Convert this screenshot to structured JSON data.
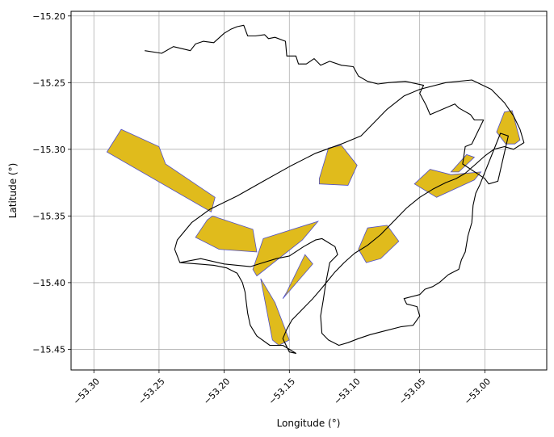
{
  "figure": {
    "xlabel": "Longitude (°)",
    "ylabel": "Latitude (°)",
    "x_ticks": [
      "−53.30",
      "−53.25",
      "−53.20",
      "−53.15",
      "−53.10",
      "−53.05",
      "−53.00"
    ],
    "y_ticks": [
      "−15.20",
      "−15.25",
      "−15.30",
      "−15.35",
      "−15.40",
      "−15.45"
    ]
  },
  "chart_data": {
    "type": "map",
    "xlim": [
      -53.3175,
      -52.9525
    ],
    "ylim": [
      -15.4655,
      -15.1965
    ],
    "x_tick_values": [
      -53.3,
      -53.25,
      -53.2,
      -53.15,
      -53.1,
      -53.05,
      -53.0
    ],
    "y_tick_values": [
      -15.2,
      -15.25,
      -15.3,
      -15.35,
      -15.4,
      -15.45
    ],
    "grid": true,
    "colors": {
      "fill": "#e0bb1c",
      "fill_edge": "#5050c8",
      "outline": "#000000",
      "grid": "#b0b0b0"
    },
    "boundary": [
      [
        -53.261,
        -15.226
      ],
      [
        -53.248,
        -15.228
      ],
      [
        -53.239,
        -15.223
      ],
      [
        -53.226,
        -15.226
      ],
      [
        -53.222,
        -15.221
      ],
      [
        -53.216,
        -15.219
      ],
      [
        -53.208,
        -15.22
      ],
      [
        -53.2,
        -15.213
      ],
      [
        -53.195,
        -15.21
      ],
      [
        -53.19,
        -15.208
      ],
      [
        -53.185,
        -15.207
      ],
      [
        -53.182,
        -15.215
      ],
      [
        -53.176,
        -15.215
      ],
      [
        -53.169,
        -15.214
      ],
      [
        -53.166,
        -15.217
      ],
      [
        -53.161,
        -15.216
      ],
      [
        -53.153,
        -15.219
      ],
      [
        -53.152,
        -15.23
      ],
      [
        -53.145,
        -15.23
      ],
      [
        -53.143,
        -15.236
      ],
      [
        -53.137,
        -15.236
      ],
      [
        -53.131,
        -15.232
      ],
      [
        -53.126,
        -15.237
      ],
      [
        -53.119,
        -15.234
      ],
      [
        -53.11,
        -15.237
      ],
      [
        -53.101,
        -15.238
      ],
      [
        -53.097,
        -15.245
      ],
      [
        -53.09,
        -15.249
      ],
      [
        -53.082,
        -15.251
      ],
      [
        -53.074,
        -15.25
      ],
      [
        -53.061,
        -15.249
      ],
      [
        -53.047,
        -15.252
      ],
      [
        -53.05,
        -15.258
      ],
      [
        -53.045,
        -15.267
      ],
      [
        -53.042,
        -15.274
      ],
      [
        -53.035,
        -15.271
      ],
      [
        -53.023,
        -15.266
      ],
      [
        -53.02,
        -15.269
      ],
      [
        -53.011,
        -15.274
      ],
      [
        -53.008,
        -15.278
      ],
      [
        -53.001,
        -15.278
      ],
      [
        -53.01,
        -15.296
      ],
      [
        -53.015,
        -15.298
      ],
      [
        -53.017,
        -15.311
      ],
      [
        -53.0,
        -15.322
      ],
      [
        -52.997,
        -15.326
      ],
      [
        -52.99,
        -15.324
      ],
      [
        -52.982,
        -15.29
      ],
      [
        -52.988,
        -15.288
      ],
      [
        -53.004,
        -15.327
      ],
      [
        -53.007,
        -15.333
      ],
      [
        -53.009,
        -15.342
      ],
      [
        -53.01,
        -15.355
      ],
      [
        -53.013,
        -15.365
      ],
      [
        -53.015,
        -15.377
      ],
      [
        -53.018,
        -15.383
      ],
      [
        -53.02,
        -15.39
      ],
      [
        -53.028,
        -15.394
      ],
      [
        -53.035,
        -15.4
      ],
      [
        -53.04,
        -15.403
      ],
      [
        -53.046,
        -15.405
      ],
      [
        -53.05,
        -15.409
      ],
      [
        -53.062,
        -15.412
      ],
      [
        -53.06,
        -15.416
      ],
      [
        -53.052,
        -15.418
      ],
      [
        -53.05,
        -15.425
      ],
      [
        -53.055,
        -15.432
      ],
      [
        -53.064,
        -15.433
      ],
      [
        -53.076,
        -15.436
      ],
      [
        -53.088,
        -15.439
      ],
      [
        -53.097,
        -15.442
      ],
      [
        -53.105,
        -15.445
      ],
      [
        -53.112,
        -15.447
      ],
      [
        -53.12,
        -15.443
      ],
      [
        -53.125,
        -15.438
      ],
      [
        -53.126,
        -15.425
      ],
      [
        -53.124,
        -15.413
      ],
      [
        -53.122,
        -15.4
      ],
      [
        -53.119,
        -15.385
      ],
      [
        -53.113,
        -15.379
      ],
      [
        -53.115,
        -15.373
      ],
      [
        -53.12,
        -15.37
      ],
      [
        -53.125,
        -15.367
      ],
      [
        -53.13,
        -15.368
      ],
      [
        -53.139,
        -15.373
      ],
      [
        -53.15,
        -15.38
      ],
      [
        -53.16,
        -15.382
      ],
      [
        -53.17,
        -15.385
      ],
      [
        -53.18,
        -15.388
      ],
      [
        -53.2,
        -15.386
      ],
      [
        -53.218,
        -15.382
      ],
      [
        -53.234,
        -15.385
      ],
      [
        -53.238,
        -15.375
      ],
      [
        -53.236,
        -15.368
      ],
      [
        -53.225,
        -15.355
      ],
      [
        -53.211,
        -15.345
      ],
      [
        -53.19,
        -15.335
      ],
      [
        -53.17,
        -15.324
      ],
      [
        -53.15,
        -15.313
      ],
      [
        -53.13,
        -15.303
      ],
      [
        -53.11,
        -15.296
      ],
      [
        -53.095,
        -15.29
      ],
      [
        -53.085,
        -15.28
      ],
      [
        -53.075,
        -15.27
      ],
      [
        -53.062,
        -15.26
      ],
      [
        -53.05,
        -15.255
      ],
      [
        -53.03,
        -15.25
      ],
      [
        -53.01,
        -15.248
      ],
      [
        -52.995,
        -15.255
      ],
      [
        -52.985,
        -15.265
      ],
      [
        -52.978,
        -15.275
      ],
      [
        -52.973,
        -15.285
      ],
      [
        -52.97,
        -15.295
      ],
      [
        -52.978,
        -15.3
      ],
      [
        -52.985,
        -15.298
      ],
      [
        -52.993,
        -15.3
      ],
      [
        -53.0,
        -15.305
      ],
      [
        -53.008,
        -15.312
      ],
      [
        -53.015,
        -15.318
      ],
      [
        -53.022,
        -15.322
      ],
      [
        -53.03,
        -15.325
      ],
      [
        -53.04,
        -15.33
      ],
      [
        -53.05,
        -15.336
      ],
      [
        -53.06,
        -15.344
      ],
      [
        -53.07,
        -15.354
      ],
      [
        -53.08,
        -15.364
      ],
      [
        -53.09,
        -15.372
      ],
      [
        -53.1,
        -15.378
      ],
      [
        -53.108,
        -15.385
      ],
      [
        -53.115,
        -15.392
      ],
      [
        -53.12,
        -15.398
      ],
      [
        -53.125,
        -15.404
      ],
      [
        -53.132,
        -15.412
      ],
      [
        -53.14,
        -15.42
      ],
      [
        -53.148,
        -15.428
      ],
      [
        -53.152,
        -15.435
      ],
      [
        -53.155,
        -15.442
      ],
      [
        -53.15,
        -15.452
      ],
      [
        -53.145,
        -15.453
      ],
      [
        -53.155,
        -15.447
      ],
      [
        -53.165,
        -15.447
      ],
      [
        -53.175,
        -15.44
      ],
      [
        -53.18,
        -15.432
      ],
      [
        -53.182,
        -15.423
      ],
      [
        -53.183,
        -15.415
      ],
      [
        -53.184,
        -15.407
      ],
      [
        -53.186,
        -15.4
      ],
      [
        -53.19,
        -15.393
      ],
      [
        -53.198,
        -15.389
      ],
      [
        -53.208,
        -15.387
      ],
      [
        -53.22,
        -15.386
      ],
      [
        -53.234,
        -15.385
      ]
    ],
    "fields": [
      {
        "id": "f1",
        "ring": [
          [
            -53.29,
            -15.302
          ],
          [
            -53.279,
            -15.285
          ],
          [
            -53.25,
            -15.298
          ],
          [
            -53.245,
            -15.311
          ],
          [
            -53.207,
            -15.336
          ],
          [
            -53.21,
            -15.347
          ],
          [
            -53.29,
            -15.302
          ]
        ]
      },
      {
        "id": "f2",
        "ring": [
          [
            -53.209,
            -15.35
          ],
          [
            -53.178,
            -15.36
          ],
          [
            -53.175,
            -15.377
          ],
          [
            -53.204,
            -15.375
          ],
          [
            -53.222,
            -15.366
          ],
          [
            -53.213,
            -15.353
          ],
          [
            -53.209,
            -15.35
          ]
        ]
      },
      {
        "id": "f3",
        "ring": [
          [
            -53.17,
            -15.367
          ],
          [
            -53.128,
            -15.354
          ],
          [
            -53.14,
            -15.368
          ],
          [
            -53.175,
            -15.395
          ],
          [
            -53.178,
            -15.39
          ],
          [
            -53.17,
            -15.367
          ]
        ]
      },
      {
        "id": "f4",
        "ring": [
          [
            -53.172,
            -15.397
          ],
          [
            -53.163,
            -15.443
          ],
          [
            -53.158,
            -15.447
          ],
          [
            -53.15,
            -15.443
          ],
          [
            -53.161,
            -15.415
          ],
          [
            -53.172,
            -15.397
          ]
        ]
      },
      {
        "id": "f5",
        "ring": [
          [
            -53.152,
            -15.407
          ],
          [
            -53.138,
            -15.379
          ],
          [
            -53.132,
            -15.386
          ],
          [
            -53.155,
            -15.412
          ],
          [
            -53.152,
            -15.407
          ]
        ]
      },
      {
        "id": "f6",
        "ring": [
          [
            -53.127,
            -15.322
          ],
          [
            -53.12,
            -15.299
          ],
          [
            -53.11,
            -15.297
          ],
          [
            -53.098,
            -15.312
          ],
          [
            -53.105,
            -15.327
          ],
          [
            -53.127,
            -15.326
          ],
          [
            -53.127,
            -15.322
          ]
        ]
      },
      {
        "id": "f7",
        "ring": [
          [
            -53.09,
            -15.359
          ],
          [
            -53.075,
            -15.357
          ],
          [
            -53.066,
            -15.369
          ],
          [
            -53.08,
            -15.382
          ],
          [
            -53.091,
            -15.385
          ],
          [
            -53.097,
            -15.375
          ],
          [
            -53.09,
            -15.359
          ]
        ]
      },
      {
        "id": "f8",
        "ring": [
          [
            -53.054,
            -15.326
          ],
          [
            -53.042,
            -15.315
          ],
          [
            -53.026,
            -15.319
          ],
          [
            -53.003,
            -15.317
          ],
          [
            -53.008,
            -15.323
          ],
          [
            -53.037,
            -15.336
          ],
          [
            -53.054,
            -15.326
          ]
        ]
      },
      {
        "id": "f9",
        "ring": [
          [
            -53.026,
            -15.317
          ],
          [
            -53.014,
            -15.304
          ],
          [
            -53.008,
            -15.306
          ],
          [
            -53.02,
            -15.317
          ],
          [
            -53.026,
            -15.317
          ]
        ]
      },
      {
        "id": "f10",
        "ring": [
          [
            -52.985,
            -15.272
          ],
          [
            -52.979,
            -15.271
          ],
          [
            -52.973,
            -15.293
          ],
          [
            -52.977,
            -15.296
          ],
          [
            -52.984,
            -15.296
          ],
          [
            -52.991,
            -15.287
          ],
          [
            -52.985,
            -15.272
          ]
        ]
      }
    ]
  }
}
